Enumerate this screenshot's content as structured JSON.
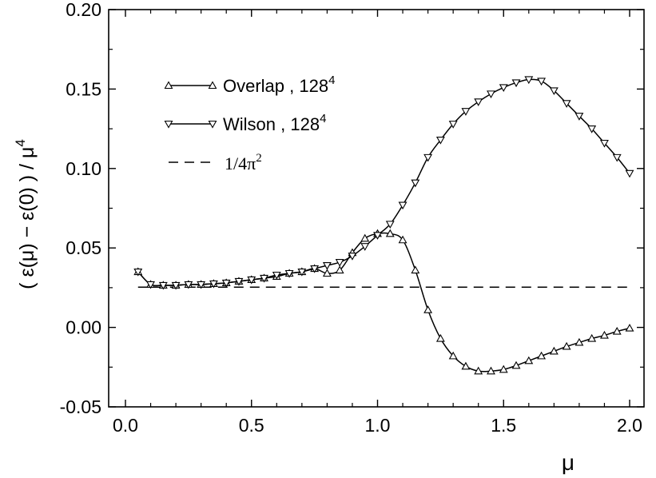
{
  "chart_data": {
    "type": "line",
    "xlabel": "μ",
    "ylabel": "( ε(μ) − ε(0) ) / μ",
    "ylabel_superscript": "4",
    "xlim": [
      -0.02,
      2.05
    ],
    "ylim": [
      -0.05,
      0.2
    ],
    "xticks": [
      0.0,
      0.5,
      1.0,
      1.5,
      2.0
    ],
    "xtick_labels": [
      "0.0",
      "0.5",
      "1.0",
      "1.5",
      "2.0"
    ],
    "yticks": [
      -0.05,
      0.0,
      0.05,
      0.1,
      0.15,
      0.2
    ],
    "ytick_labels": [
      "-0.05",
      "0.00",
      "0.05",
      "0.10",
      "0.15",
      "0.20"
    ],
    "grid": false,
    "legend_position": "top-left",
    "series": [
      {
        "name": "Overlap ,  128",
        "name_superscript": "4",
        "marker": "triangle-up",
        "x": [
          0.05,
          0.1,
          0.15,
          0.2,
          0.25,
          0.3,
          0.35,
          0.4,
          0.45,
          0.5,
          0.55,
          0.6,
          0.65,
          0.7,
          0.75,
          0.8,
          0.85,
          0.9,
          0.95,
          1.0,
          1.05,
          1.1,
          1.15,
          1.2,
          1.25,
          1.3,
          1.35,
          1.4,
          1.45,
          1.5,
          1.55,
          1.6,
          1.65,
          1.7,
          1.75,
          1.8,
          1.85,
          1.9,
          1.95,
          2.0
        ],
        "y": [
          0.035,
          0.027,
          0.0265,
          0.0265,
          0.027,
          0.027,
          0.0275,
          0.028,
          0.029,
          0.03,
          0.031,
          0.032,
          0.034,
          0.035,
          0.037,
          0.034,
          0.036,
          0.047,
          0.056,
          0.059,
          0.059,
          0.055,
          0.036,
          0.011,
          -0.007,
          -0.018,
          -0.0245,
          -0.0275,
          -0.0275,
          -0.0265,
          -0.024,
          -0.021,
          -0.018,
          -0.015,
          -0.012,
          -0.0095,
          -0.007,
          -0.005,
          -0.0025,
          -0.0005
        ]
      },
      {
        "name": "Wilson ,  128",
        "name_superscript": "4",
        "marker": "triangle-down",
        "x": [
          0.05,
          0.1,
          0.15,
          0.2,
          0.25,
          0.3,
          0.35,
          0.4,
          0.45,
          0.5,
          0.55,
          0.6,
          0.65,
          0.7,
          0.75,
          0.8,
          0.85,
          0.9,
          0.95,
          1.0,
          1.05,
          1.1,
          1.15,
          1.2,
          1.25,
          1.3,
          1.35,
          1.4,
          1.45,
          1.5,
          1.55,
          1.6,
          1.65,
          1.7,
          1.75,
          1.8,
          1.85,
          1.9,
          1.95,
          2.0
        ],
        "y": [
          0.035,
          0.027,
          0.0265,
          0.0265,
          0.027,
          0.027,
          0.0275,
          0.028,
          0.029,
          0.03,
          0.031,
          0.033,
          0.034,
          0.035,
          0.037,
          0.039,
          0.041,
          0.045,
          0.051,
          0.058,
          0.065,
          0.077,
          0.091,
          0.107,
          0.118,
          0.128,
          0.136,
          0.142,
          0.147,
          0.151,
          0.154,
          0.156,
          0.155,
          0.149,
          0.141,
          0.133,
          0.125,
          0.116,
          0.107,
          0.097
        ]
      },
      {
        "name": "1/4π",
        "name_superscript": "2",
        "style": "dashed",
        "x": [
          0.05,
          2.0
        ],
        "y": [
          0.0253,
          0.0253
        ]
      }
    ]
  }
}
